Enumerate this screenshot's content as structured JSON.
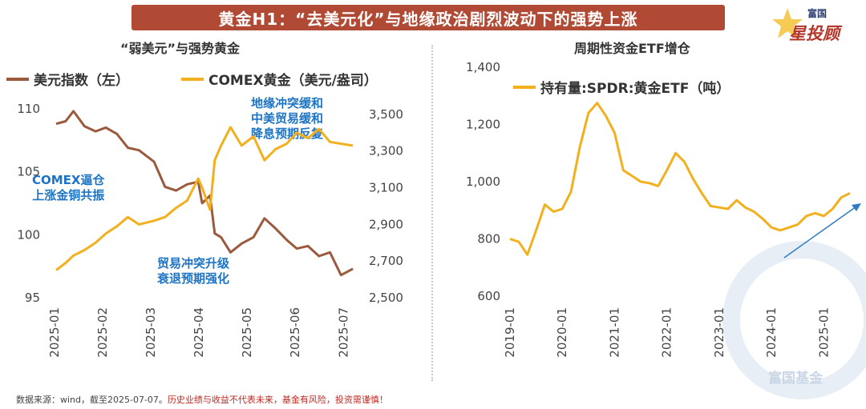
{
  "title": "黄金H1：“去美元化”与地缘政治剧烈波动下的强势上涨",
  "logo": {
    "small": "富国",
    "big": "星投顾"
  },
  "watermark": "富国基金",
  "footer": {
    "source": "数据来源：wind，截至2025-07-07。",
    "warning": "历史业绩与收益不代表未来，基金有风险，投资需谨慎！"
  },
  "colors": {
    "brown": "#9b5a3d",
    "gold": "#f2b01e",
    "annotation": "#1d73c4",
    "title_bg": "#b04a35"
  },
  "chart_data": [
    {
      "type": "line",
      "title": "“弱美元”与强势黄金",
      "x_tick_labels": [
        "2025-01",
        "2025-02",
        "2025-03",
        "2025-04",
        "2025-05",
        "2025-06",
        "2025-07"
      ],
      "y_left": {
        "ticks": [
          "110",
          "105",
          "100",
          "95"
        ],
        "ylim": [
          95,
          111
        ]
      },
      "y_right": {
        "ticks": [
          "3,500",
          "3,300",
          "3,100",
          "2,900",
          "2,700",
          "2,500"
        ],
        "ylim": [
          2500,
          3600
        ]
      },
      "series": [
        {
          "name": "美元指数（左）",
          "axis": "left",
          "color": "#9b5a3d",
          "x": [
            "2025-01-02",
            "2025-01-08",
            "2025-01-13",
            "2025-01-20",
            "2025-01-27",
            "2025-02-03",
            "2025-02-10",
            "2025-02-17",
            "2025-02-24",
            "2025-03-03",
            "2025-03-10",
            "2025-03-17",
            "2025-03-24",
            "2025-03-31",
            "2025-04-03",
            "2025-04-08",
            "2025-04-11",
            "2025-04-15",
            "2025-04-21",
            "2025-04-28",
            "2025-05-05",
            "2025-05-12",
            "2025-05-19",
            "2025-05-26",
            "2025-06-02",
            "2025-06-09",
            "2025-06-16",
            "2025-06-23",
            "2025-06-30",
            "2025-07-07"
          ],
          "values": [
            108.8,
            109.0,
            109.8,
            108.6,
            108.2,
            108.5,
            108.0,
            106.9,
            106.7,
            105.8,
            103.8,
            103.5,
            104.0,
            104.2,
            102.5,
            103.1,
            100.1,
            99.8,
            98.6,
            99.3,
            99.8,
            101.3,
            100.5,
            99.6,
            98.9,
            99.1,
            98.3,
            98.6,
            96.8,
            97.3
          ]
        },
        {
          "name": "COMEX黄金（美元/盎司）",
          "axis": "right",
          "color": "#f2b01e",
          "x": [
            "2025-01-02",
            "2025-01-08",
            "2025-01-13",
            "2025-01-20",
            "2025-01-27",
            "2025-02-03",
            "2025-02-10",
            "2025-02-17",
            "2025-02-24",
            "2025-03-03",
            "2025-03-10",
            "2025-03-17",
            "2025-03-24",
            "2025-03-31",
            "2025-04-03",
            "2025-04-08",
            "2025-04-11",
            "2025-04-15",
            "2025-04-21",
            "2025-04-28",
            "2025-05-05",
            "2025-05-12",
            "2025-05-19",
            "2025-05-26",
            "2025-06-02",
            "2025-06-09",
            "2025-06-16",
            "2025-06-23",
            "2025-06-30",
            "2025-07-07"
          ],
          "values": [
            2650,
            2690,
            2730,
            2760,
            2800,
            2850,
            2890,
            2940,
            2900,
            2920,
            2940,
            2990,
            3030,
            3150,
            3100,
            2980,
            3250,
            3330,
            3430,
            3330,
            3380,
            3250,
            3310,
            3340,
            3400,
            3370,
            3420,
            3350,
            3340,
            3330
          ]
        }
      ],
      "annotations": [
        {
          "lines": [
            "COMEX逼仓",
            "上涨金铜共振"
          ]
        },
        {
          "lines": [
            "地缘冲突缓和",
            "中美贸易缓和",
            "降息预期反复"
          ]
        },
        {
          "lines": [
            "贸易冲突升级",
            "衰退预期强化"
          ]
        }
      ]
    },
    {
      "type": "line",
      "title": "周期性资金ETF增仓",
      "x_tick_labels": [
        "2019-01",
        "2020-01",
        "2021-01",
        "2022-01",
        "2023-01",
        "2024-01",
        "2025-01"
      ],
      "y": {
        "ticks": [
          "1,400",
          "1,200",
          "1,000",
          "800",
          "600"
        ],
        "ylim": [
          600,
          1400
        ]
      },
      "series": [
        {
          "name": "持有量:SPDR:黄金ETF（吨）",
          "color": "#f2b01e",
          "x": [
            "2019-01",
            "2019-03",
            "2019-05",
            "2019-07",
            "2019-09",
            "2019-11",
            "2020-01",
            "2020-03",
            "2020-05",
            "2020-07",
            "2020-09",
            "2020-11",
            "2021-01",
            "2021-03",
            "2021-05",
            "2021-07",
            "2021-09",
            "2021-11",
            "2022-01",
            "2022-03",
            "2022-05",
            "2022-07",
            "2022-09",
            "2022-11",
            "2023-01",
            "2023-03",
            "2023-05",
            "2023-07",
            "2023-09",
            "2023-11",
            "2024-01",
            "2024-03",
            "2024-05",
            "2024-07",
            "2024-09",
            "2024-11",
            "2025-01",
            "2025-03",
            "2025-05",
            "2025-07"
          ],
          "values": [
            800,
            790,
            745,
            830,
            920,
            895,
            905,
            965,
            1120,
            1240,
            1275,
            1230,
            1170,
            1040,
            1020,
            1000,
            995,
            985,
            1040,
            1100,
            1070,
            1010,
            960,
            915,
            910,
            905,
            935,
            910,
            895,
            870,
            840,
            830,
            840,
            850,
            880,
            890,
            880,
            905,
            945,
            960
          ]
        }
      ]
    }
  ]
}
